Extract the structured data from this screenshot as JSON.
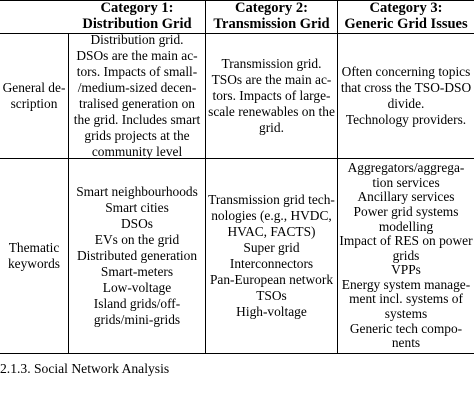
{
  "table": {
    "headers": [
      {
        "id": "cat1",
        "lines": [
          "Category 1:",
          "Distribution Grid"
        ]
      },
      {
        "id": "cat2",
        "lines": [
          "Category 2:",
          "Transmission Grid"
        ]
      },
      {
        "id": "cat3",
        "lines": [
          "Category 3:",
          "Generic Grid Issues"
        ]
      }
    ],
    "rows": [
      {
        "label": [
          "General de-",
          "scription"
        ],
        "cells": [
          [
            "Distribution grid.",
            "DSOs are the main ac-",
            "tors. Impacts of small-",
            "/medium-sized decen-",
            "tralised generation on",
            "the grid. Includes smart",
            "grids projects at the",
            "community level"
          ],
          [
            "Transmission grid.",
            "TSOs are the main ac-",
            "tors. Impacts of large-",
            "scale renewables on the",
            "grid."
          ],
          [
            "Often concerning topics",
            "that cross the TSO-DSO",
            "divide.",
            "Technology providers."
          ]
        ]
      },
      {
        "label": [
          "Thematic",
          "keywords"
        ],
        "cells": [
          [
            "Smart neighbourhoods",
            "Smart cities",
            "DSOs",
            "EVs on the grid",
            "Distributed generation",
            "Smart-meters",
            "Low-voltage",
            "Island grids/off-",
            "grids/mini-grids"
          ],
          [
            "Transmission grid tech-",
            "nologies (e.g., HVDC,",
            "HVAC, FACTS)",
            "Super grid",
            "Interconnectors",
            "Pan-European network",
            "TSOs",
            "High-voltage"
          ],
          [
            "Aggregators/aggrega-",
            "tion services",
            "Ancillary services",
            "Power grid systems",
            "modelling",
            "Impact of RES on power",
            "grids",
            "VPPs",
            "Energy system manage-",
            "ment incl. systems of",
            "systems",
            "Generic tech compo-",
            "nents"
          ]
        ]
      }
    ]
  },
  "caption": "2.1.3. Social Network Analysis"
}
